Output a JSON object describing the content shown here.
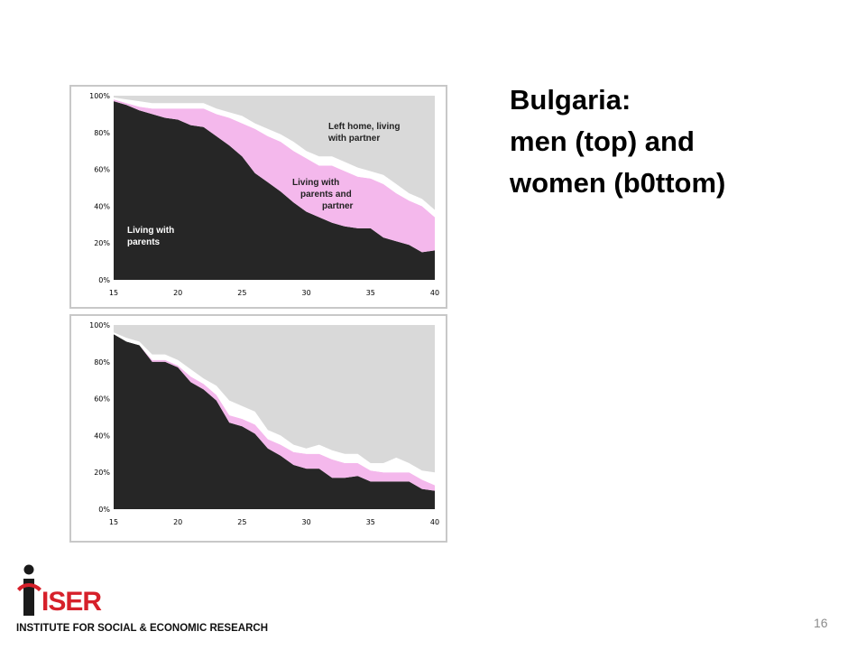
{
  "slide": {
    "title_lines": [
      "Bulgaria:",
      "men (top) and",
      "women (b0ttom)"
    ],
    "page_number": "16"
  },
  "logo": {
    "text": "ISER",
    "caption": "INSTITUTE FOR SOCIAL & ECONOMIC RESEARCH"
  },
  "chart_data": [
    {
      "type": "area",
      "stacked": true,
      "percent": true,
      "x": [
        15,
        16,
        17,
        18,
        19,
        20,
        21,
        22,
        23,
        24,
        25,
        26,
        27,
        28,
        29,
        30,
        31,
        32,
        33,
        34,
        35,
        36,
        37,
        38,
        39,
        40
      ],
      "xlim": [
        15,
        40
      ],
      "ylim": [
        0,
        100
      ],
      "xticks": [
        "15",
        "20",
        "25",
        "30",
        "35",
        "40"
      ],
      "yticks": [
        "0%",
        "20%",
        "40%",
        "60%",
        "80%",
        "100%"
      ],
      "colors": {
        "parents": "#262626",
        "parents_partner": "#f4b8ec",
        "other": "#ffffff",
        "partner": "#d9d9d9"
      },
      "series": [
        {
          "key": "parents",
          "name": "Living with parents",
          "values": [
            97,
            95,
            92,
            90,
            88,
            87,
            84,
            83,
            78,
            73,
            67,
            58,
            53,
            48,
            42,
            37,
            34,
            31,
            29,
            28,
            28,
            23,
            21,
            19,
            15,
            16
          ]
        },
        {
          "key": "parents_partner",
          "name": "Living with parents and partner",
          "values": [
            1,
            1,
            2,
            3,
            5,
            6,
            9,
            10,
            12,
            15,
            18,
            24,
            25,
            27,
            28,
            29,
            28,
            31,
            30,
            28,
            27,
            29,
            26,
            24,
            25,
            18
          ]
        },
        {
          "key": "other",
          "name": "",
          "values": [
            1,
            2,
            3,
            3,
            3,
            3,
            3,
            3,
            3,
            3,
            4,
            3,
            4,
            4,
            5,
            4,
            5,
            5,
            5,
            5,
            4,
            5,
            5,
            4,
            4,
            4
          ]
        },
        {
          "key": "partner",
          "name": "Left home, living with partner",
          "values": [
            1,
            2,
            3,
            4,
            4,
            4,
            4,
            4,
            7,
            9,
            11,
            15,
            18,
            21,
            25,
            30,
            33,
            33,
            36,
            39,
            41,
            43,
            48,
            53,
            56,
            62
          ]
        }
      ],
      "annotations": [
        {
          "series": "partner",
          "lines": [
            "Left home, living",
            "with partner"
          ]
        },
        {
          "series": "parents_partner",
          "lines": [
            "Living with",
            "parents and",
            "partner"
          ]
        },
        {
          "series": "parents",
          "lines": [
            "Living with",
            "parents"
          ]
        }
      ]
    },
    {
      "type": "area",
      "stacked": true,
      "percent": true,
      "x": [
        15,
        16,
        17,
        18,
        19,
        20,
        21,
        22,
        23,
        24,
        25,
        26,
        27,
        28,
        29,
        30,
        31,
        32,
        33,
        34,
        35,
        36,
        37,
        38,
        39,
        40
      ],
      "xlim": [
        15,
        40
      ],
      "ylim": [
        0,
        100
      ],
      "xticks": [
        "15",
        "20",
        "25",
        "30",
        "35",
        "40"
      ],
      "yticks": [
        "0%",
        "20%",
        "40%",
        "60%",
        "80%",
        "100%"
      ],
      "colors": {
        "parents": "#262626",
        "parents_partner": "#f4b8ec",
        "other": "#ffffff",
        "partner": "#d9d9d9"
      },
      "series": [
        {
          "key": "parents",
          "name": "",
          "values": [
            95,
            91,
            89,
            80,
            80,
            77,
            69,
            65,
            59,
            47,
            45,
            41,
            33,
            29,
            24,
            22,
            22,
            17,
            17,
            18,
            15,
            15,
            15,
            15,
            11,
            10
          ]
        },
        {
          "key": "parents_partner",
          "name": "",
          "values": [
            0,
            0,
            0,
            1,
            1,
            1,
            3,
            3,
            3,
            4,
            4,
            5,
            5,
            6,
            7,
            8,
            8,
            10,
            8,
            7,
            6,
            5,
            5,
            5,
            5,
            3
          ]
        },
        {
          "key": "other",
          "name": "",
          "values": [
            1,
            2,
            2,
            3,
            3,
            3,
            4,
            3,
            5,
            8,
            7,
            7,
            5,
            5,
            4,
            3,
            5,
            5,
            5,
            5,
            4,
            5,
            8,
            5,
            5,
            7
          ]
        },
        {
          "key": "partner",
          "name": "",
          "values": [
            4,
            7,
            9,
            16,
            16,
            19,
            24,
            29,
            33,
            41,
            44,
            47,
            57,
            60,
            65,
            67,
            65,
            68,
            70,
            70,
            75,
            75,
            72,
            75,
            79,
            80
          ]
        }
      ]
    }
  ]
}
